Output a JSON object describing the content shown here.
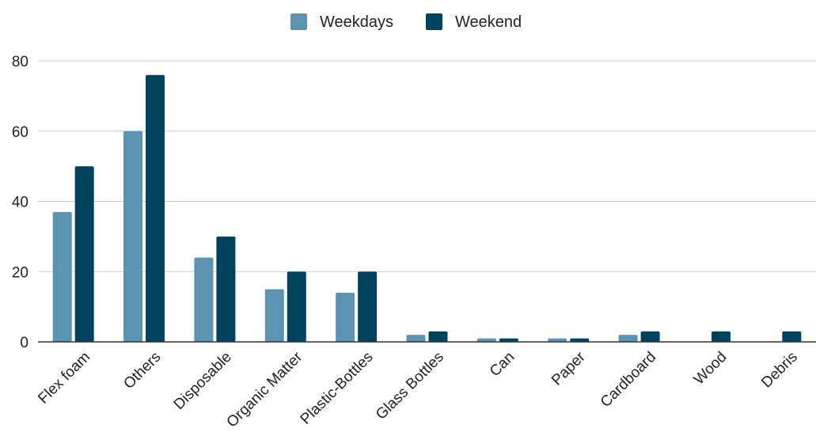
{
  "chart_data": {
    "type": "bar",
    "title": "",
    "xlabel": "",
    "ylabel": "",
    "categories": [
      "Flex foam",
      "Others",
      "Disposable",
      "Organic Matter",
      "Plastic-Bottles",
      "Glass Bottles",
      "Can",
      "Paper",
      "Cardboard",
      "Wood",
      "Debris"
    ],
    "series": [
      {
        "name": "Weekdays",
        "color": "#5b93b1",
        "values": [
          37,
          60,
          24,
          15,
          14,
          2,
          1,
          1,
          2,
          0,
          0
        ]
      },
      {
        "name": "Weekend",
        "color": "#01435f",
        "values": [
          50,
          76,
          30,
          20,
          20,
          3,
          1,
          1,
          3,
          3,
          3
        ]
      }
    ],
    "ylim": [
      0,
      80
    ],
    "yticks": [
      0,
      20,
      40,
      60,
      80
    ],
    "grid": true,
    "legend": "top-center"
  }
}
